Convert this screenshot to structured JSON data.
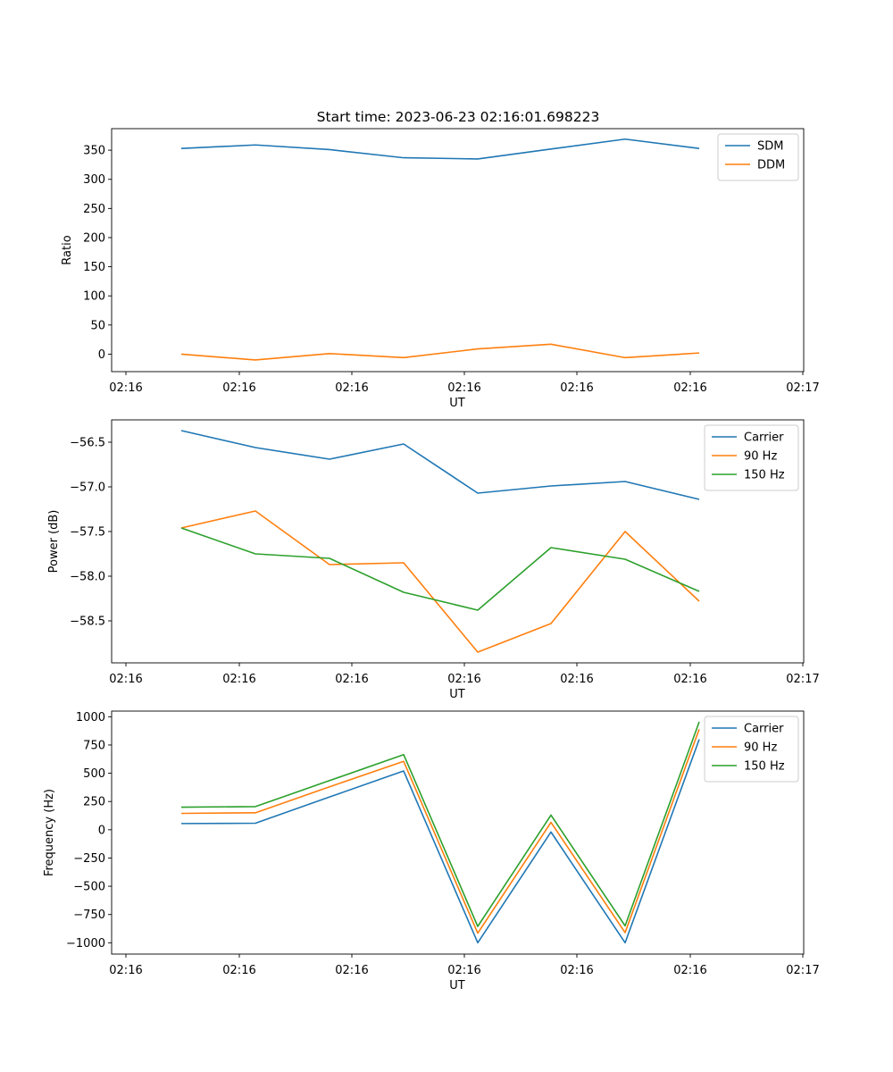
{
  "figure": {
    "title": "Start time: 2023-06-23 02:16:01.698223"
  },
  "colors": {
    "blue": "#1f77b4",
    "orange": "#ff7f0e",
    "green": "#2ca02c"
  },
  "chart_data": [
    {
      "type": "line",
      "title": "Start time: 2023-06-23 02:16:01.698223",
      "xlabel": "UT",
      "ylabel": "Ratio",
      "x_tick_labels": [
        "02:16",
        "02:16",
        "02:16",
        "02:16",
        "02:16",
        "02:16",
        "02:17"
      ],
      "y_ticks": [
        0,
        50,
        100,
        150,
        200,
        250,
        300,
        350
      ],
      "y_tick_labels": [
        "0",
        "50",
        "100",
        "150",
        "200",
        "250",
        "300",
        "350"
      ],
      "ylim": [
        -30,
        387
      ],
      "grid": false,
      "legend": "top-right",
      "series": [
        {
          "name": "SDM",
          "color": "#1f77b4",
          "values": [
            353,
            359,
            351,
            337,
            335,
            352,
            369,
            353
          ]
        },
        {
          "name": "DDM",
          "color": "#ff7f0e",
          "values": [
            0,
            -10,
            1,
            -6,
            9,
            17,
            -6,
            2
          ]
        }
      ]
    },
    {
      "type": "line",
      "title": "",
      "xlabel": "UT",
      "ylabel": "Power (dB)",
      "x_tick_labels": [
        "02:16",
        "02:16",
        "02:16",
        "02:16",
        "02:16",
        "02:16",
        "02:17"
      ],
      "y_ticks": [
        -58.5,
        -58.0,
        -57.5,
        -57.0,
        -56.5
      ],
      "y_tick_labels": [
        "−58.5",
        "−58.0",
        "−57.5",
        "−57.0",
        "−56.5"
      ],
      "ylim": [
        -58.97,
        -56.25
      ],
      "grid": false,
      "legend": "top-right",
      "series": [
        {
          "name": "Carrier",
          "color": "#1f77b4",
          "values": [
            -56.37,
            -56.56,
            -56.69,
            -56.52,
            -57.07,
            -56.99,
            -56.94,
            -57.14
          ]
        },
        {
          "name": "90 Hz",
          "color": "#ff7f0e",
          "values": [
            -57.46,
            -57.27,
            -57.87,
            -57.85,
            -58.85,
            -58.53,
            -57.5,
            -58.28
          ]
        },
        {
          "name": "150 Hz",
          "color": "#2ca02c",
          "values": [
            -57.46,
            -57.75,
            -57.8,
            -58.18,
            -58.38,
            -57.68,
            -57.81,
            -58.17
          ]
        }
      ]
    },
    {
      "type": "line",
      "title": "",
      "xlabel": "UT",
      "ylabel": "Frequency (Hz)",
      "x_tick_labels": [
        "02:16",
        "02:16",
        "02:16",
        "02:16",
        "02:16",
        "02:16",
        "02:17"
      ],
      "y_ticks": [
        -1000,
        -750,
        -500,
        -250,
        0,
        250,
        500,
        750,
        1000
      ],
      "y_tick_labels": [
        "−1000",
        "−750",
        "−500",
        "−250",
        "0",
        "250",
        "500",
        "750",
        "1000"
      ],
      "ylim": [
        -1100,
        1050
      ],
      "grid": false,
      "legend": "top-right",
      "series": [
        {
          "name": "Carrier",
          "color": "#1f77b4",
          "values": [
            55,
            58,
            290,
            520,
            -1000,
            -20,
            -1000,
            800
          ]
        },
        {
          "name": "90 Hz",
          "color": "#ff7f0e",
          "values": [
            145,
            150,
            380,
            605,
            -915,
            65,
            -910,
            890
          ]
        },
        {
          "name": "150 Hz",
          "color": "#2ca02c",
          "values": [
            200,
            205,
            435,
            665,
            -855,
            130,
            -850,
            955
          ]
        }
      ]
    }
  ]
}
